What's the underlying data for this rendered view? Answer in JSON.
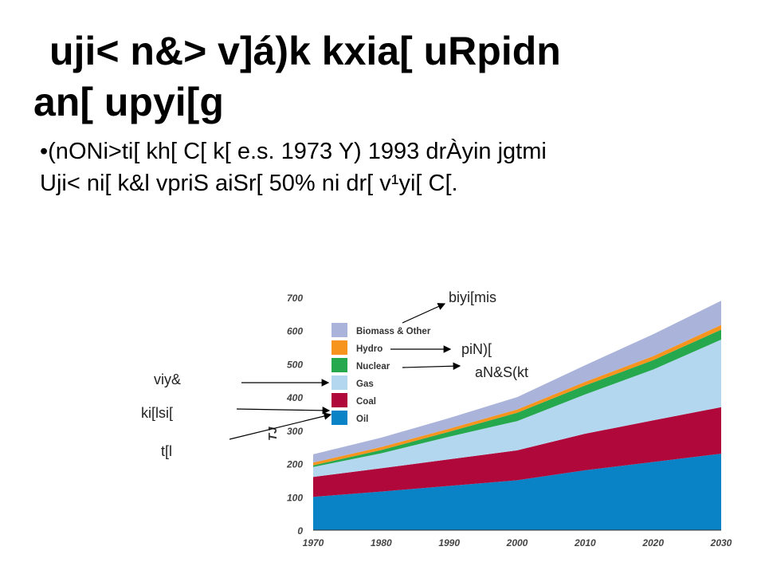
{
  "slide": {
    "title_line1": "uji< n&> v]á)k kxia[ uRpidn",
    "title_line2": "an[ upyi[g",
    "bullet_line1": "•(nONi>ti[ kh[ C[ k[ e.s. 1973 Y) 1993 drÀyin jgtmi",
    "bullet_line2": "Uji< ni[ k&l vpriS aiSr[ 50% ni dr[ v¹yi[ C[."
  },
  "annotations": {
    "biomass": "biyi[mis",
    "hydro": "piN)[",
    "nuclear": "aN&S(kt",
    "gas": "viy&",
    "coal": "ki[lsi[",
    "oil": "t[l"
  },
  "colors": {
    "oil": "#0a83c6",
    "coal": "#b0083a",
    "gas": "#b3d7ef",
    "nuclear": "#26a84e",
    "hydro": "#f7941d",
    "biomass": "#aab3d9"
  },
  "chart_data": {
    "type": "area",
    "stacked": true,
    "ylabel": "TJ",
    "ylim": [
      0,
      700
    ],
    "yticks": [
      "0",
      "100",
      "200",
      "300",
      "400",
      "500",
      "600",
      "700"
    ],
    "x": [
      "1970",
      "1980",
      "1990",
      "2000",
      "2010",
      "2020",
      "2030"
    ],
    "legend_position": "top-left",
    "series": [
      {
        "name": "Oil",
        "color_key": "oil",
        "values": [
          100,
          116,
          133,
          150,
          180,
          205,
          230
        ]
      },
      {
        "name": "Coal",
        "color_key": "coal",
        "values": [
          60,
          70,
          80,
          90,
          110,
          125,
          140
        ]
      },
      {
        "name": "Gas",
        "color_key": "gas",
        "values": [
          30,
          45,
          68,
          88,
          118,
          153,
          203
        ]
      },
      {
        "name": "Nuclear",
        "color_key": "nuclear",
        "values": [
          5,
          10,
          15,
          25,
          27,
          28,
          30
        ]
      },
      {
        "name": "Hydro",
        "color_key": "hydro",
        "values": [
          8,
          9,
          9,
          10,
          11,
          12,
          14
        ]
      },
      {
        "name": "Biomass & Other",
        "color_key": "biomass",
        "values": [
          25,
          28,
          32,
          37,
          50,
          66,
          73
        ]
      }
    ],
    "legend_order": [
      "Biomass & Other",
      "Hydro",
      "Nuclear",
      "Gas",
      "Coal",
      "Oil"
    ]
  }
}
